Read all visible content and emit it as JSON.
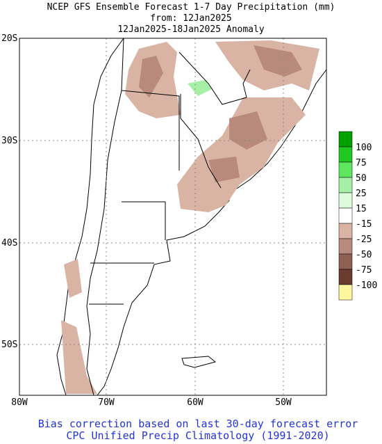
{
  "header": {
    "lines": [
      "NCEP GFS Ensemble Forecast 1-7 Day Precipitation (mm)",
      "from: 12Jan2025",
      "12Jan2025-18Jan2025 Anomaly"
    ]
  },
  "map": {
    "lat_labels": [
      "20S",
      "30S",
      "40S",
      "50S"
    ],
    "lon_labels": [
      "80W",
      "70W",
      "60W",
      "50W"
    ]
  },
  "legend": {
    "colors": [
      "#00a000",
      "#22c822",
      "#5ee65e",
      "#a6f0a6",
      "#dcfcdc",
      "#ffffff",
      "#d9b3a3",
      "#b78a7c",
      "#8e6155",
      "#6b3b30",
      "#fff6a0"
    ],
    "labels": [
      "100",
      "75",
      "50",
      "25",
      "15",
      "-15",
      "-25",
      "-50",
      "-75",
      "-100"
    ]
  },
  "footer": {
    "lines": [
      "Bias correction based on last 30-day forecast error",
      "CPC Unified Precip Climatology (1991-2020)"
    ]
  }
}
